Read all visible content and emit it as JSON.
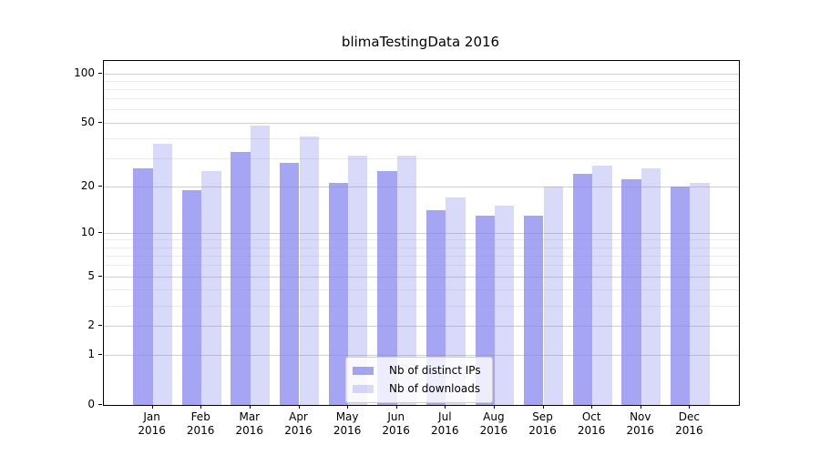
{
  "title": "blimaTestingData 2016",
  "chart_data": {
    "type": "bar",
    "title": "blimaTestingData 2016",
    "yscale": "symlog (log1p)",
    "grid": true,
    "legend_position": "lower center",
    "month_labels": [
      "Jan",
      "Feb",
      "Mar",
      "Apr",
      "May",
      "Jun",
      "Jul",
      "Aug",
      "Sep",
      "Oct",
      "Nov",
      "Dec"
    ],
    "year": "2016",
    "categories": [
      "Jan 2016",
      "Feb 2016",
      "Mar 2016",
      "Apr 2016",
      "May 2016",
      "Jun 2016",
      "Jul 2016",
      "Aug 2016",
      "Sep 2016",
      "Oct 2016",
      "Nov 2016",
      "Dec 2016"
    ],
    "series": [
      {
        "name": "Nb of distinct IPs",
        "color": "rgba(130,130,240,0.72)",
        "values": [
          26,
          19,
          33,
          28,
          21,
          25,
          14,
          13,
          13,
          24,
          22,
          20
        ]
      },
      {
        "name": "Nb of downloads",
        "color": "rgba(130,130,240,0.30)",
        "values": [
          37,
          25,
          48,
          41,
          31,
          31,
          17,
          15,
          20,
          27,
          26,
          21
        ]
      }
    ],
    "y_major_ticks": [
      0,
      1,
      2,
      5,
      10,
      20,
      50,
      100
    ],
    "y_minor_ticks": [
      3,
      4,
      6,
      7,
      8,
      9,
      30,
      40,
      60,
      70,
      80,
      90
    ],
    "ylim": [
      0,
      119
    ],
    "xlabel": "",
    "ylabel": ""
  },
  "colors": {
    "bar_dark": "#a5a5f4",
    "bar_light": "#d9d9f9",
    "grid_major": "#cfcfcf",
    "grid_minor": "#ececec",
    "axis": "#000000",
    "background": "#ffffff"
  },
  "legend": {
    "items": [
      {
        "label": "Nb of distinct IPs"
      },
      {
        "label": "Nb of downloads"
      }
    ]
  }
}
